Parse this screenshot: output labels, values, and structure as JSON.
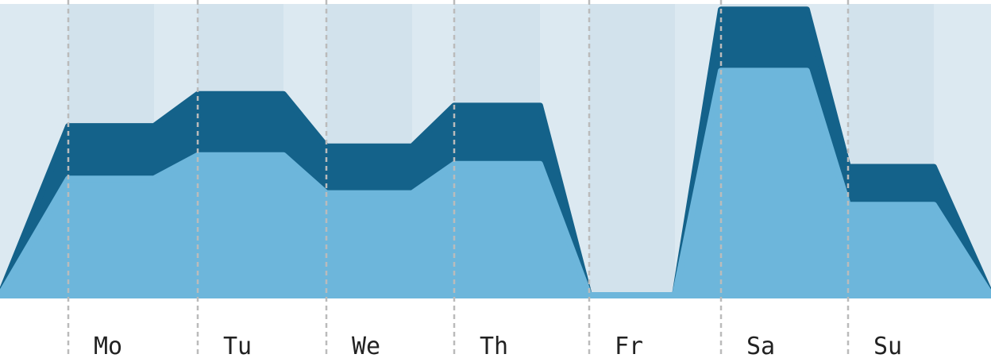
{
  "chart_data": {
    "type": "area",
    "stacked": true,
    "categories": [
      "Mo",
      "Tu",
      "We",
      "Th",
      "Fr",
      "Sa",
      "Su"
    ],
    "series": [
      {
        "values": [
          40,
          48,
          35,
          45,
          0,
          77,
          31
        ]
      },
      {
        "values": [
          18,
          21,
          16,
          20,
          0,
          21,
          13
        ]
      }
    ],
    "ylim": [
      0,
      100
    ],
    "grid": "vertical-dashed",
    "legend": "none",
    "colors": {
      "lower": "#6db6db",
      "upper": "#14628a",
      "background": "#dce9f1",
      "background_stripe": "#d2e2ec",
      "gridline": "#bbbbbb",
      "label": "#222222"
    }
  }
}
